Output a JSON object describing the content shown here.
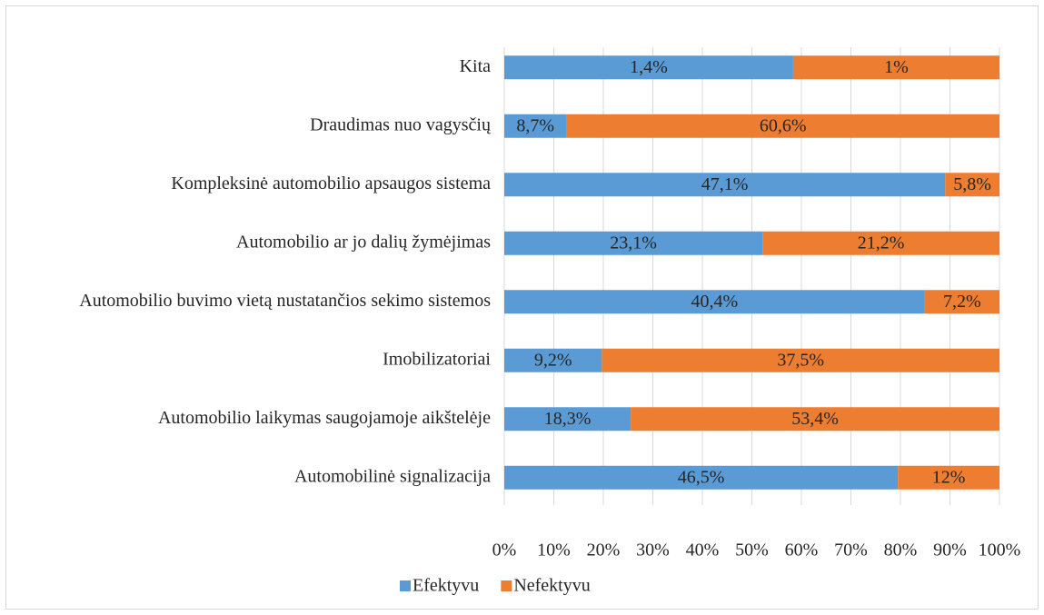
{
  "chart_data": {
    "type": "stacked_percent_barh",
    "categories": [
      "Kita",
      "Draudimas nuo vagysčių",
      "Kompleksinė automobilio apsaugos sistema",
      "Automobilio ar jo dalių žymėjimas",
      "Automobilio buvimo vietą nustatančios sekimo sistemos",
      "Imobilizatoriai",
      "Automobilio laikymas saugojamoje aikštelėje",
      "Automobilinė signalizacija"
    ],
    "series": [
      {
        "name": "Efektyvu",
        "color": "#5b9bd5",
        "values": [
          1.4,
          8.7,
          47.1,
          23.1,
          40.4,
          9.2,
          18.3,
          46.5
        ],
        "value_labels": [
          "1,4%",
          "8,7%",
          "47,1%",
          "23,1%",
          "40,4%",
          "9,2%",
          "18,3%",
          "46,5%"
        ]
      },
      {
        "name": "Nefektyvu",
        "color": "#ed7d31",
        "values": [
          1,
          60.6,
          5.8,
          21.2,
          7.2,
          37.5,
          53.4,
          12
        ],
        "value_labels": [
          "1%",
          "60,6%",
          "5,8%",
          "21,2%",
          "7,2%",
          "37,5%",
          "53,4%",
          "12%"
        ]
      }
    ],
    "xlim": [
      0,
      100
    ],
    "xticks": [
      {
        "value": 0,
        "label": "0%"
      },
      {
        "value": 10,
        "label": "10%"
      },
      {
        "value": 20,
        "label": "20%"
      },
      {
        "value": 30,
        "label": "30%"
      },
      {
        "value": 40,
        "label": "40%"
      },
      {
        "value": 50,
        "label": "50%"
      },
      {
        "value": 60,
        "label": "60%"
      },
      {
        "value": 70,
        "label": "70%"
      },
      {
        "value": 80,
        "label": "80%"
      },
      {
        "value": 90,
        "label": "90%"
      },
      {
        "value": 100,
        "label": "100%"
      }
    ],
    "grid": true,
    "legend": "bottom"
  }
}
